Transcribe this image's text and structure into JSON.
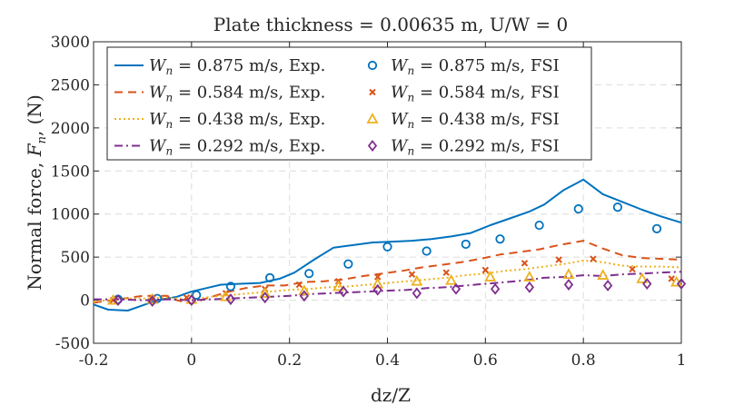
{
  "chart_data": {
    "type": "line",
    "title": "Plate thickness = 0.00635 m, U/W = 0",
    "xlabel": "dz/Z",
    "ylabel_prefix": "Normal force, ",
    "ylabel_symbol": "F",
    "ylabel_subscript": "n",
    "ylabel_suffix": ", (N)",
    "xlim": [
      -0.2,
      1.0
    ],
    "ylim": [
      -500,
      3000
    ],
    "xticks": [
      -0.2,
      0,
      0.2,
      0.4,
      0.6,
      0.8,
      1
    ],
    "xtick_labels": [
      "-0.2",
      "0",
      "0.2",
      "0.4",
      "0.6",
      "0.8",
      "1"
    ],
    "yticks": [
      -500,
      0,
      500,
      1000,
      1500,
      2000,
      2500,
      3000
    ],
    "ytick_labels": [
      "-500",
      "0",
      "500",
      "1000",
      "1500",
      "2000",
      "2500",
      "3000"
    ],
    "grid": true,
    "legend_position": "top-left",
    "legend_columns": 2,
    "legend_symbol": "W",
    "legend_subscript": "n",
    "series": [
      {
        "name": "W_n = 0.875 m/s, Exp.",
        "legend_text": " = 0.875 m/s, Exp.",
        "kind": "line",
        "style": "solid",
        "color": "#0072BD",
        "x": [
          -0.2,
          -0.17,
          -0.13,
          -0.1,
          -0.07,
          -0.03,
          0.0,
          0.03,
          0.06,
          0.1,
          0.14,
          0.18,
          0.21,
          0.25,
          0.29,
          0.33,
          0.37,
          0.41,
          0.45,
          0.49,
          0.53,
          0.57,
          0.61,
          0.65,
          0.69,
          0.72,
          0.76,
          0.8,
          0.84,
          0.88,
          0.92,
          0.96,
          1.0
        ],
        "y": [
          -50,
          -110,
          -120,
          -60,
          0,
          40,
          100,
          140,
          180,
          190,
          200,
          250,
          320,
          470,
          610,
          640,
          670,
          680,
          690,
          710,
          740,
          780,
          870,
          950,
          1030,
          1110,
          1280,
          1400,
          1230,
          1140,
          1050,
          970,
          900
        ]
      },
      {
        "name": "W_n = 0.584 m/s, Exp.",
        "legend_text": " = 0.584 m/s, Exp.",
        "kind": "line",
        "style": "dashed",
        "color": "#D95319",
        "x": [
          -0.2,
          -0.15,
          -0.1,
          -0.05,
          -0.03,
          0.0,
          0.03,
          0.07,
          0.11,
          0.15,
          0.19,
          0.23,
          0.27,
          0.31,
          0.35,
          0.39,
          0.43,
          0.47,
          0.51,
          0.55,
          0.59,
          0.63,
          0.67,
          0.71,
          0.75,
          0.8,
          0.84,
          0.88,
          0.92,
          0.96,
          1.0
        ],
        "y": [
          -30,
          10,
          50,
          50,
          0,
          -40,
          20,
          90,
          140,
          170,
          170,
          210,
          220,
          240,
          280,
          310,
          340,
          380,
          410,
          440,
          480,
          530,
          560,
          590,
          640,
          690,
          600,
          520,
          490,
          480,
          470
        ]
      },
      {
        "name": "W_n = 0.438 m/s, Exp.",
        "legend_text": " = 0.438 m/s, Exp.",
        "kind": "line",
        "style": "dotted",
        "color": "#EDB120",
        "x": [
          -0.2,
          -0.15,
          -0.1,
          -0.05,
          0.0,
          0.04,
          0.08,
          0.12,
          0.16,
          0.2,
          0.24,
          0.28,
          0.32,
          0.36,
          0.4,
          0.44,
          0.48,
          0.52,
          0.56,
          0.6,
          0.64,
          0.68,
          0.72,
          0.76,
          0.8,
          0.84,
          0.88,
          0.92,
          0.96,
          1.0
        ],
        "y": [
          -20,
          20,
          20,
          30,
          10,
          40,
          60,
          80,
          100,
          120,
          130,
          150,
          160,
          180,
          200,
          220,
          240,
          260,
          290,
          310,
          340,
          360,
          390,
          420,
          460,
          440,
          400,
          390,
          390,
          380
        ]
      },
      {
        "name": "W_n = 0.292 m/s, Exp.",
        "legend_text": " = 0.292 m/s, Exp.",
        "kind": "line",
        "style": "dashdot",
        "color": "#7E2F8E",
        "x": [
          -0.2,
          -0.15,
          -0.1,
          -0.05,
          0.0,
          0.04,
          0.08,
          0.12,
          0.16,
          0.2,
          0.24,
          0.28,
          0.32,
          0.36,
          0.4,
          0.44,
          0.48,
          0.52,
          0.56,
          0.6,
          0.64,
          0.68,
          0.72,
          0.76,
          0.8,
          0.84,
          0.88,
          0.92,
          0.96,
          1.0
        ],
        "y": [
          10,
          10,
          0,
          10,
          0,
          10,
          20,
          30,
          40,
          50,
          70,
          80,
          90,
          100,
          110,
          120,
          140,
          150,
          170,
          190,
          210,
          230,
          260,
          270,
          290,
          280,
          300,
          310,
          320,
          330
        ]
      },
      {
        "name": "W_n = 0.875 m/s, FSI",
        "legend_text": " = 0.875 m/s, FSI",
        "kind": "marker",
        "marker": "circle",
        "color": "#0072BD",
        "x": [
          -0.15,
          -0.07,
          0.01,
          0.08,
          0.16,
          0.24,
          0.32,
          0.4,
          0.48,
          0.56,
          0.63,
          0.71,
          0.79,
          0.87,
          0.95
        ],
        "y": [
          10,
          20,
          60,
          160,
          260,
          310,
          420,
          620,
          570,
          650,
          710,
          870,
          1060,
          1080,
          830
        ]
      },
      {
        "name": "W_n = 0.584 m/s, FSI",
        "legend_text": " = 0.584 m/s, FSI",
        "kind": "marker",
        "marker": "x",
        "color": "#D95319",
        "x": [
          -0.16,
          -0.08,
          -0.01,
          0.07,
          0.15,
          0.22,
          0.3,
          0.38,
          0.45,
          0.52,
          0.6,
          0.68,
          0.75,
          0.82,
          0.9,
          0.98
        ],
        "y": [
          0,
          20,
          30,
          80,
          130,
          180,
          220,
          270,
          300,
          320,
          350,
          430,
          470,
          480,
          360,
          250
        ]
      },
      {
        "name": "W_n = 0.438 m/s, FSI",
        "legend_text": " = 0.438 m/s, FSI",
        "kind": "marker",
        "marker": "triangle",
        "color": "#EDB120",
        "x": [
          -0.16,
          -0.08,
          0.0,
          0.07,
          0.15,
          0.23,
          0.3,
          0.38,
          0.46,
          0.53,
          0.61,
          0.69,
          0.77,
          0.84,
          0.92,
          0.99
        ],
        "y": [
          0,
          10,
          10,
          40,
          80,
          110,
          160,
          190,
          220,
          230,
          270,
          270,
          300,
          290,
          250,
          210
        ]
      },
      {
        "name": "W_n = 0.292 m/s, FSI",
        "legend_text": " = 0.292 m/s, FSI",
        "kind": "marker",
        "marker": "diamond",
        "color": "#7E2F8E",
        "x": [
          -0.15,
          -0.08,
          0.0,
          0.08,
          0.15,
          0.23,
          0.31,
          0.38,
          0.46,
          0.54,
          0.62,
          0.69,
          0.77,
          0.85,
          0.93,
          1.0
        ],
        "y": [
          0,
          -10,
          0,
          10,
          30,
          50,
          100,
          120,
          80,
          130,
          130,
          150,
          180,
          170,
          190,
          190
        ]
      }
    ]
  }
}
